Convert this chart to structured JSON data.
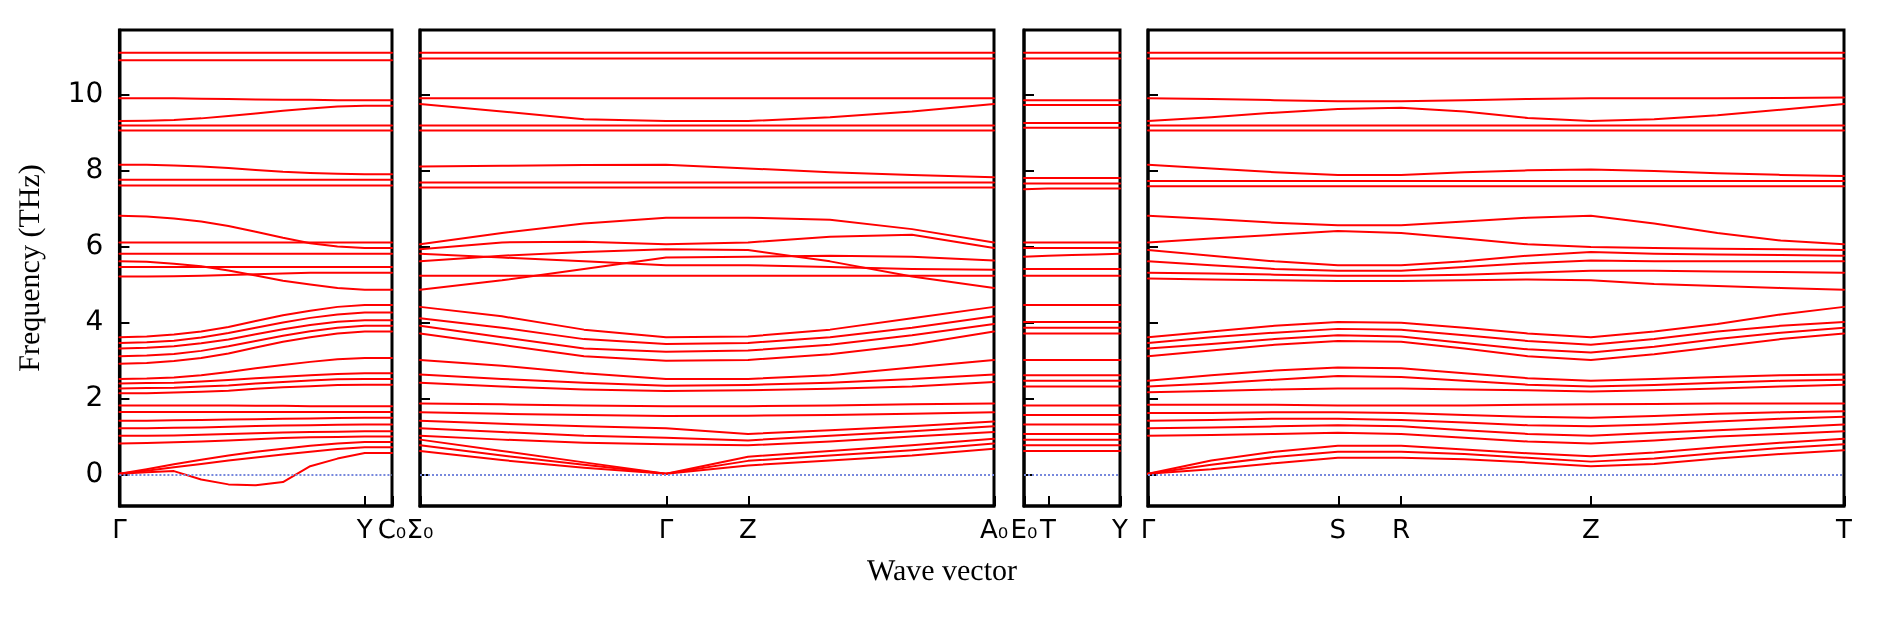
{
  "chart_data": [
    {
      "type": "line",
      "ylabel": "Frequency (THz)",
      "color": "#ff0000",
      "marker": "none",
      "line_style": "solid",
      "ylim": [
        -0.85,
        11.7
      ],
      "yticks": [
        0,
        2,
        4,
        6,
        8,
        10
      ],
      "categories": [
        "Γ",
        null,
        null,
        null,
        null,
        null,
        null,
        null,
        null,
        "Y",
        "C₀"
      ],
      "ref_lines": [
        {
          "axis": "y",
          "value": 0,
          "color": "#7788dd",
          "line_style": "dotted"
        }
      ],
      "series": [
        {
          "values": [
            11.1,
            11.1,
            11.1,
            11.1,
            11.1,
            11.1,
            11.1,
            11.1,
            11.1,
            11.1,
            11.1
          ]
        },
        {
          "values": [
            10.9,
            10.9,
            10.9,
            10.9,
            10.9,
            10.9,
            10.9,
            10.9,
            10.9,
            10.9,
            10.9
          ]
        },
        {
          "values": [
            9.9,
            9.9,
            9.9,
            9.89,
            9.88,
            9.87,
            9.86,
            9.86,
            9.85,
            9.85,
            9.85
          ]
        },
        {
          "values": [
            9.3,
            9.31,
            9.33,
            9.37,
            9.43,
            9.5,
            9.57,
            9.63,
            9.68,
            9.7,
            9.7
          ]
        },
        {
          "values": [
            9.18,
            9.18,
            9.18,
            9.18,
            9.18,
            9.18,
            9.18,
            9.18,
            9.18,
            9.18,
            9.18
          ]
        },
        {
          "values": [
            9.05,
            9.05,
            9.05,
            9.05,
            9.05,
            9.05,
            9.05,
            9.05,
            9.05,
            9.05,
            9.05
          ]
        },
        {
          "values": [
            8.15,
            8.15,
            8.13,
            8.1,
            8.06,
            8.01,
            7.96,
            7.93,
            7.91,
            7.9,
            7.9
          ]
        },
        {
          "values": [
            7.75,
            7.75,
            7.75,
            7.75,
            7.75,
            7.75,
            7.75,
            7.75,
            7.75,
            7.75,
            7.75
          ]
        },
        {
          "values": [
            7.6,
            7.6,
            7.6,
            7.6,
            7.6,
            7.6,
            7.6,
            7.6,
            7.6,
            7.6,
            7.6
          ]
        },
        {
          "values": [
            6.8,
            6.78,
            6.73,
            6.65,
            6.53,
            6.38,
            6.22,
            6.08,
            5.99,
            5.95,
            5.95
          ]
        },
        {
          "values": [
            6.1,
            6.1,
            6.1,
            6.1,
            6.1,
            6.1,
            6.1,
            6.1,
            6.1,
            6.1,
            6.1
          ]
        },
        {
          "values": [
            5.8,
            5.8,
            5.8,
            5.8,
            5.8,
            5.8,
            5.8,
            5.8,
            5.8,
            5.8,
            5.8
          ]
        },
        {
          "values": [
            5.6,
            5.59,
            5.54,
            5.47,
            5.36,
            5.23,
            5.09,
            4.99,
            4.9,
            4.85,
            4.85
          ]
        },
        {
          "values": [
            5.45,
            5.45,
            5.45,
            5.45,
            5.45,
            5.45,
            5.45,
            5.45,
            5.45,
            5.45,
            5.45
          ]
        },
        {
          "values": [
            5.2,
            5.2,
            5.21,
            5.22,
            5.24,
            5.26,
            5.28,
            5.3,
            5.3,
            5.3,
            5.3
          ]
        },
        {
          "values": [
            3.6,
            3.62,
            3.67,
            3.75,
            3.87,
            4.03,
            4.18,
            4.3,
            4.4,
            4.45,
            4.45
          ]
        },
        {
          "values": [
            3.45,
            3.47,
            3.51,
            3.59,
            3.71,
            3.85,
            3.99,
            4.11,
            4.2,
            4.25,
            4.25
          ]
        },
        {
          "values": [
            3.3,
            3.32,
            3.36,
            3.44,
            3.54,
            3.68,
            3.81,
            3.92,
            4.01,
            4.05,
            4.05
          ]
        },
        {
          "values": [
            3.1,
            3.12,
            3.16,
            3.24,
            3.36,
            3.5,
            3.64,
            3.76,
            3.85,
            3.9,
            3.9
          ]
        },
        {
          "values": [
            2.9,
            2.92,
            2.97,
            3.05,
            3.17,
            3.33,
            3.48,
            3.6,
            3.7,
            3.75,
            3.75
          ]
        },
        {
          "values": [
            2.5,
            2.51,
            2.54,
            2.6,
            2.68,
            2.78,
            2.87,
            2.95,
            3.02,
            3.05,
            3.05
          ]
        },
        {
          "values": [
            2.38,
            2.39,
            2.4,
            2.43,
            2.47,
            2.52,
            2.56,
            2.6,
            2.63,
            2.65,
            2.65
          ]
        },
        {
          "values": [
            2.25,
            2.26,
            2.27,
            2.3,
            2.33,
            2.38,
            2.42,
            2.46,
            2.49,
            2.5,
            2.5
          ]
        },
        {
          "values": [
            2.12,
            2.12,
            2.14,
            2.16,
            2.19,
            2.24,
            2.28,
            2.31,
            2.34,
            2.35,
            2.35
          ]
        },
        {
          "values": [
            1.8,
            1.8,
            1.8,
            1.8,
            1.8,
            1.79,
            1.79,
            1.78,
            1.78,
            1.78,
            1.78
          ]
        },
        {
          "values": [
            1.63,
            1.63,
            1.63,
            1.63,
            1.63,
            1.63,
            1.63,
            1.63,
            1.63,
            1.63,
            1.63
          ]
        },
        {
          "values": [
            1.4,
            1.4,
            1.41,
            1.42,
            1.43,
            1.44,
            1.45,
            1.46,
            1.47,
            1.48,
            1.48
          ]
        },
        {
          "values": [
            1.2,
            1.2,
            1.21,
            1.22,
            1.24,
            1.26,
            1.27,
            1.28,
            1.29,
            1.3,
            1.3
          ]
        },
        {
          "values": [
            1.0,
            1.0,
            1.01,
            1.03,
            1.05,
            1.07,
            1.09,
            1.1,
            1.11,
            1.12,
            1.12
          ]
        },
        {
          "values": [
            0.8,
            0.81,
            0.83,
            0.85,
            0.88,
            0.91,
            0.94,
            0.96,
            0.97,
            0.98,
            0.98
          ]
        },
        {
          "values": [
            0,
            0.12,
            0.25,
            0.37,
            0.48,
            0.58,
            0.66,
            0.74,
            0.8,
            0.84,
            0.84
          ]
        },
        {
          "values": [
            0,
            0.08,
            0.17,
            0.26,
            0.35,
            0.43,
            0.51,
            0.58,
            0.65,
            0.7,
            0.7
          ]
        },
        {
          "values": [
            0,
            0.04,
            0.07,
            -0.15,
            -0.28,
            -0.3,
            -0.22,
            0.2,
            0.4,
            0.55,
            0.55
          ]
        }
      ]
    },
    {
      "type": "line",
      "xlabel": "Wave vector",
      "color": "#ff0000",
      "marker": "none",
      "line_style": "solid",
      "tick_labels": "x",
      "ylim": [
        -0.85,
        11.7
      ],
      "yticks": [
        0,
        2,
        4,
        6,
        8,
        10
      ],
      "categories": [
        "Σ₀",
        null,
        null,
        "Γ",
        "Z",
        null,
        null,
        "A₀"
      ],
      "ref_lines": [
        {
          "axis": "y",
          "value": 0,
          "color": "#7788dd",
          "line_style": "dotted"
        }
      ],
      "series": [
        {
          "values": [
            11.1,
            11.1,
            11.1,
            11.1,
            11.1,
            11.1,
            11.1,
            11.1
          ]
        },
        {
          "values": [
            10.95,
            10.95,
            10.95,
            10.95,
            10.95,
            10.95,
            10.95,
            10.95
          ]
        },
        {
          "values": [
            9.9,
            9.9,
            9.9,
            9.9,
            9.9,
            9.9,
            9.9,
            9.9
          ]
        },
        {
          "values": [
            9.75,
            9.55,
            9.35,
            9.3,
            9.3,
            9.4,
            9.55,
            9.75
          ]
        },
        {
          "values": [
            9.18,
            9.18,
            9.18,
            9.18,
            9.18,
            9.18,
            9.18,
            9.18
          ]
        },
        {
          "values": [
            9.05,
            9.05,
            9.05,
            9.05,
            9.05,
            9.05,
            9.05,
            9.05
          ]
        },
        {
          "values": [
            8.1,
            8.12,
            8.14,
            8.15,
            8.05,
            7.95,
            7.88,
            7.82
          ]
        },
        {
          "values": [
            7.68,
            7.68,
            7.68,
            7.68,
            7.68,
            7.68,
            7.68,
            7.68
          ]
        },
        {
          "values": [
            7.55,
            7.55,
            7.55,
            7.55,
            7.55,
            7.55,
            7.55,
            7.55
          ]
        },
        {
          "values": [
            6.05,
            6.35,
            6.6,
            6.75,
            6.75,
            6.7,
            6.45,
            6.1
          ]
        },
        {
          "values": [
            5.92,
            6.1,
            6.12,
            6.05,
            6.1,
            6.25,
            6.3,
            5.95
          ]
        },
        {
          "values": [
            5.8,
            5.7,
            5.6,
            5.5,
            5.5,
            5.45,
            5.4,
            5.38
          ]
        },
        {
          "values": [
            5.6,
            5.75,
            5.85,
            5.92,
            5.9,
            5.6,
            5.2,
            4.9
          ]
        },
        {
          "values": [
            4.85,
            5.1,
            5.4,
            5.7,
            5.72,
            5.75,
            5.72,
            5.62
          ]
        },
        {
          "values": [
            5.22,
            5.22,
            5.22,
            5.22,
            5.22,
            5.22,
            5.22,
            5.22
          ]
        },
        {
          "values": [
            4.4,
            4.15,
            3.8,
            3.6,
            3.62,
            3.8,
            4.1,
            4.4
          ]
        },
        {
          "values": [
            4.1,
            3.85,
            3.55,
            3.42,
            3.45,
            3.6,
            3.85,
            4.15
          ]
        },
        {
          "values": [
            3.9,
            3.6,
            3.3,
            3.22,
            3.25,
            3.4,
            3.65,
            3.95
          ]
        },
        {
          "values": [
            3.7,
            3.4,
            3.1,
            2.98,
            3.0,
            3.15,
            3.4,
            3.75
          ]
        },
        {
          "values": [
            3.0,
            2.85,
            2.65,
            2.5,
            2.5,
            2.6,
            2.8,
            3.0
          ]
        },
        {
          "values": [
            2.62,
            2.5,
            2.4,
            2.32,
            2.34,
            2.4,
            2.5,
            2.62
          ]
        },
        {
          "values": [
            2.4,
            2.3,
            2.22,
            2.18,
            2.2,
            2.24,
            2.3,
            2.42
          ]
        },
        {
          "values": [
            1.85,
            1.83,
            1.8,
            1.78,
            1.78,
            1.8,
            1.83,
            1.85
          ]
        },
        {
          "values": [
            1.62,
            1.58,
            1.55,
            1.52,
            1.53,
            1.55,
            1.58,
            1.62
          ]
        },
        {
          "values": [
            1.4,
            1.32,
            1.25,
            1.2,
            1.05,
            1.15,
            1.25,
            1.38
          ]
        },
        {
          "values": [
            1.2,
            1.1,
            1.0,
            0.95,
            0.88,
            1.0,
            1.12,
            1.25
          ]
        },
        {
          "values": [
            1.0,
            0.9,
            0.82,
            0.78,
            0.75,
            0.85,
            0.98,
            1.1
          ]
        },
        {
          "values": [
            0.9,
            0.6,
            0.3,
            0,
            0.45,
            0.6,
            0.75,
            0.92
          ]
        },
        {
          "values": [
            0.75,
            0.48,
            0.24,
            0,
            0.34,
            0.48,
            0.62,
            0.8
          ]
        },
        {
          "values": [
            0.6,
            0.36,
            0.16,
            0,
            0.22,
            0.35,
            0.48,
            0.66
          ]
        }
      ]
    },
    {
      "type": "line",
      "color": "#ff0000",
      "marker": "none",
      "line_style": "solid",
      "tick_labels": "x",
      "ylim": [
        -0.85,
        11.7
      ],
      "yticks": [
        0,
        2,
        4,
        6,
        8,
        10
      ],
      "categories": [
        "E₀",
        "T",
        null,
        null,
        "Y"
      ],
      "ref_lines": [
        {
          "axis": "y",
          "value": 0,
          "color": "#7788dd",
          "line_style": "dotted"
        }
      ],
      "series": [
        {
          "values": [
            11.1,
            11.1,
            11.1,
            11.1,
            11.1
          ]
        },
        {
          "values": [
            10.95,
            10.95,
            10.95,
            10.95,
            10.95
          ]
        },
        {
          "values": [
            9.85,
            9.85,
            9.85,
            9.85,
            9.85
          ]
        },
        {
          "values": [
            9.72,
            9.72,
            9.72,
            9.72,
            9.72
          ]
        },
        {
          "values": [
            9.25,
            9.25,
            9.25,
            9.25,
            9.25
          ]
        },
        {
          "values": [
            9.12,
            9.12,
            9.12,
            9.12,
            9.12
          ]
        },
        {
          "values": [
            7.8,
            7.8,
            7.8,
            7.8,
            7.8
          ]
        },
        {
          "values": [
            7.65,
            7.65,
            7.65,
            7.65,
            7.65
          ]
        },
        {
          "values": [
            7.5,
            7.52,
            7.52,
            7.52,
            7.52
          ]
        },
        {
          "values": [
            6.1,
            6.1,
            6.1,
            6.1,
            6.1
          ]
        },
        {
          "values": [
            5.95,
            5.95,
            5.95,
            5.95,
            5.95
          ]
        },
        {
          "values": [
            5.72,
            5.75,
            5.77,
            5.78,
            5.8
          ]
        },
        {
          "values": [
            5.4,
            5.4,
            5.4,
            5.4,
            5.4
          ]
        },
        {
          "values": [
            5.22,
            5.22,
            5.22,
            5.22,
            5.22
          ]
        },
        {
          "values": [
            4.45,
            4.45,
            4.45,
            4.45,
            4.45
          ]
        },
        {
          "values": [
            4.0,
            4.0,
            4.0,
            4.0,
            4.0
          ]
        },
        {
          "values": [
            3.85,
            3.85,
            3.85,
            3.85,
            3.85
          ]
        },
        {
          "values": [
            3.7,
            3.7,
            3.7,
            3.7,
            3.7
          ]
        },
        {
          "values": [
            3.0,
            3.0,
            3.0,
            3.0,
            3.0
          ]
        },
        {
          "values": [
            2.6,
            2.6,
            2.6,
            2.6,
            2.6
          ]
        },
        {
          "values": [
            2.45,
            2.45,
            2.45,
            2.45,
            2.45
          ]
        },
        {
          "values": [
            2.3,
            2.3,
            2.3,
            2.3,
            2.3
          ]
        },
        {
          "values": [
            1.8,
            1.8,
            1.8,
            1.8,
            1.8
          ]
        },
        {
          "values": [
            1.55,
            1.55,
            1.55,
            1.55,
            1.55
          ]
        },
        {
          "values": [
            1.3,
            1.3,
            1.3,
            1.3,
            1.3
          ]
        },
        {
          "values": [
            1.05,
            1.05,
            1.05,
            1.05,
            1.05
          ]
        },
        {
          "values": [
            0.9,
            0.9,
            0.9,
            0.9,
            0.9
          ]
        },
        {
          "values": [
            0.75,
            0.75,
            0.75,
            0.75,
            0.75
          ]
        },
        {
          "values": [
            0.6,
            0.6,
            0.6,
            0.6,
            0.6
          ]
        }
      ]
    },
    {
      "type": "line",
      "color": "#ff0000",
      "marker": "none",
      "line_style": "solid",
      "tick_labels": "x",
      "ylim": [
        -0.85,
        11.7
      ],
      "yticks": [
        0,
        2,
        4,
        6,
        8,
        10
      ],
      "categories": [
        "Γ",
        null,
        null,
        "S",
        "R",
        null,
        null,
        "Z",
        null,
        null,
        null,
        "T"
      ],
      "ref_lines": [
        {
          "axis": "y",
          "value": 0,
          "color": "#7788dd",
          "line_style": "dotted"
        }
      ],
      "series": [
        {
          "values": [
            11.1,
            11.1,
            11.1,
            11.1,
            11.1,
            11.1,
            11.1,
            11.1,
            11.1,
            11.1,
            11.1,
            11.1
          ]
        },
        {
          "values": [
            10.95,
            10.95,
            10.95,
            10.95,
            10.95,
            10.95,
            10.95,
            10.95,
            10.95,
            10.95,
            10.95,
            10.95
          ]
        },
        {
          "values": [
            9.9,
            9.88,
            9.85,
            9.82,
            9.82,
            9.85,
            9.88,
            9.9,
            9.9,
            9.9,
            9.91,
            9.92
          ]
        },
        {
          "values": [
            9.3,
            9.4,
            9.52,
            9.62,
            9.65,
            9.55,
            9.38,
            9.3,
            9.35,
            9.45,
            9.6,
            9.75
          ]
        },
        {
          "values": [
            9.18,
            9.18,
            9.18,
            9.18,
            9.18,
            9.18,
            9.18,
            9.18,
            9.18,
            9.18,
            9.18,
            9.18
          ]
        },
        {
          "values": [
            9.05,
            9.05,
            9.05,
            9.05,
            9.05,
            9.05,
            9.05,
            9.05,
            9.05,
            9.05,
            9.05,
            9.05
          ]
        },
        {
          "values": [
            8.15,
            8.05,
            7.95,
            7.88,
            7.88,
            7.95,
            8.0,
            8.02,
            7.98,
            7.92,
            7.88,
            7.85
          ]
        },
        {
          "values": [
            7.72,
            7.72,
            7.72,
            7.72,
            7.72,
            7.72,
            7.72,
            7.72,
            7.72,
            7.72,
            7.72,
            7.72
          ]
        },
        {
          "values": [
            7.58,
            7.58,
            7.58,
            7.58,
            7.58,
            7.58,
            7.58,
            7.58,
            7.58,
            7.58,
            7.58,
            7.58
          ]
        },
        {
          "values": [
            6.8,
            6.72,
            6.62,
            6.55,
            6.55,
            6.65,
            6.75,
            6.8,
            6.6,
            6.35,
            6.15,
            6.05
          ]
        },
        {
          "values": [
            6.1,
            6.2,
            6.3,
            6.4,
            6.35,
            6.2,
            6.05,
            5.98,
            5.95,
            5.93,
            5.92,
            5.9
          ]
        },
        {
          "values": [
            5.9,
            5.75,
            5.6,
            5.5,
            5.5,
            5.6,
            5.75,
            5.85,
            5.8,
            5.78,
            5.77,
            5.75
          ]
        },
        {
          "values": [
            5.6,
            5.5,
            5.4,
            5.35,
            5.35,
            5.45,
            5.55,
            5.62,
            5.6,
            5.6,
            5.6,
            5.6
          ]
        },
        {
          "values": [
            5.3,
            5.28,
            5.25,
            5.22,
            5.22,
            5.25,
            5.3,
            5.35,
            5.35,
            5.33,
            5.32,
            5.3
          ]
        },
        {
          "values": [
            5.15,
            5.12,
            5.1,
            5.08,
            5.08,
            5.1,
            5.12,
            5.1,
            5.0,
            4.95,
            4.9,
            4.85
          ]
        },
        {
          "values": [
            3.6,
            3.75,
            3.9,
            4.0,
            3.98,
            3.85,
            3.7,
            3.6,
            3.75,
            3.95,
            4.2,
            4.4
          ]
        },
        {
          "values": [
            3.45,
            3.6,
            3.72,
            3.82,
            3.8,
            3.65,
            3.5,
            3.4,
            3.55,
            3.75,
            3.9,
            4.0
          ]
        },
        {
          "values": [
            3.3,
            3.42,
            3.55,
            3.65,
            3.62,
            3.45,
            3.28,
            3.2,
            3.35,
            3.55,
            3.72,
            3.85
          ]
        },
        {
          "values": [
            3.1,
            3.25,
            3.4,
            3.5,
            3.48,
            3.3,
            3.1,
            3.0,
            3.15,
            3.35,
            3.55,
            3.7
          ]
        },
        {
          "values": [
            2.45,
            2.6,
            2.72,
            2.8,
            2.78,
            2.65,
            2.52,
            2.45,
            2.5,
            2.55,
            2.6,
            2.62
          ]
        },
        {
          "values": [
            2.3,
            2.38,
            2.48,
            2.58,
            2.55,
            2.45,
            2.35,
            2.3,
            2.34,
            2.4,
            2.45,
            2.48
          ]
        },
        {
          "values": [
            2.15,
            2.18,
            2.22,
            2.25,
            2.25,
            2.22,
            2.2,
            2.17,
            2.2,
            2.25,
            2.3,
            2.35
          ]
        },
        {
          "values": [
            1.82,
            1.82,
            1.82,
            1.8,
            1.8,
            1.8,
            1.82,
            1.83,
            1.84,
            1.85,
            1.85,
            1.85
          ]
        },
        {
          "values": [
            1.6,
            1.6,
            1.62,
            1.62,
            1.6,
            1.55,
            1.5,
            1.48,
            1.52,
            1.58,
            1.62,
            1.65
          ]
        },
        {
          "values": [
            1.4,
            1.42,
            1.45,
            1.45,
            1.42,
            1.35,
            1.28,
            1.25,
            1.3,
            1.38,
            1.45,
            1.5
          ]
        },
        {
          "values": [
            1.2,
            1.22,
            1.25,
            1.28,
            1.25,
            1.15,
            1.05,
            1.0,
            1.08,
            1.15,
            1.22,
            1.3
          ]
        },
        {
          "values": [
            1.0,
            1.02,
            1.05,
            1.08,
            1.05,
            0.95,
            0.85,
            0.8,
            0.88,
            0.98,
            1.05,
            1.12
          ]
        },
        {
          "values": [
            0,
            0.35,
            0.58,
            0.74,
            0.74,
            0.64,
            0.54,
            0.46,
            0.56,
            0.7,
            0.82,
            0.92
          ]
        },
        {
          "values": [
            0,
            0.24,
            0.44,
            0.58,
            0.58,
            0.52,
            0.42,
            0.32,
            0.4,
            0.55,
            0.68,
            0.78
          ]
        },
        {
          "values": [
            0,
            0.12,
            0.28,
            0.42,
            0.42,
            0.38,
            0.3,
            0.2,
            0.26,
            0.4,
            0.52,
            0.62
          ]
        }
      ]
    }
  ]
}
